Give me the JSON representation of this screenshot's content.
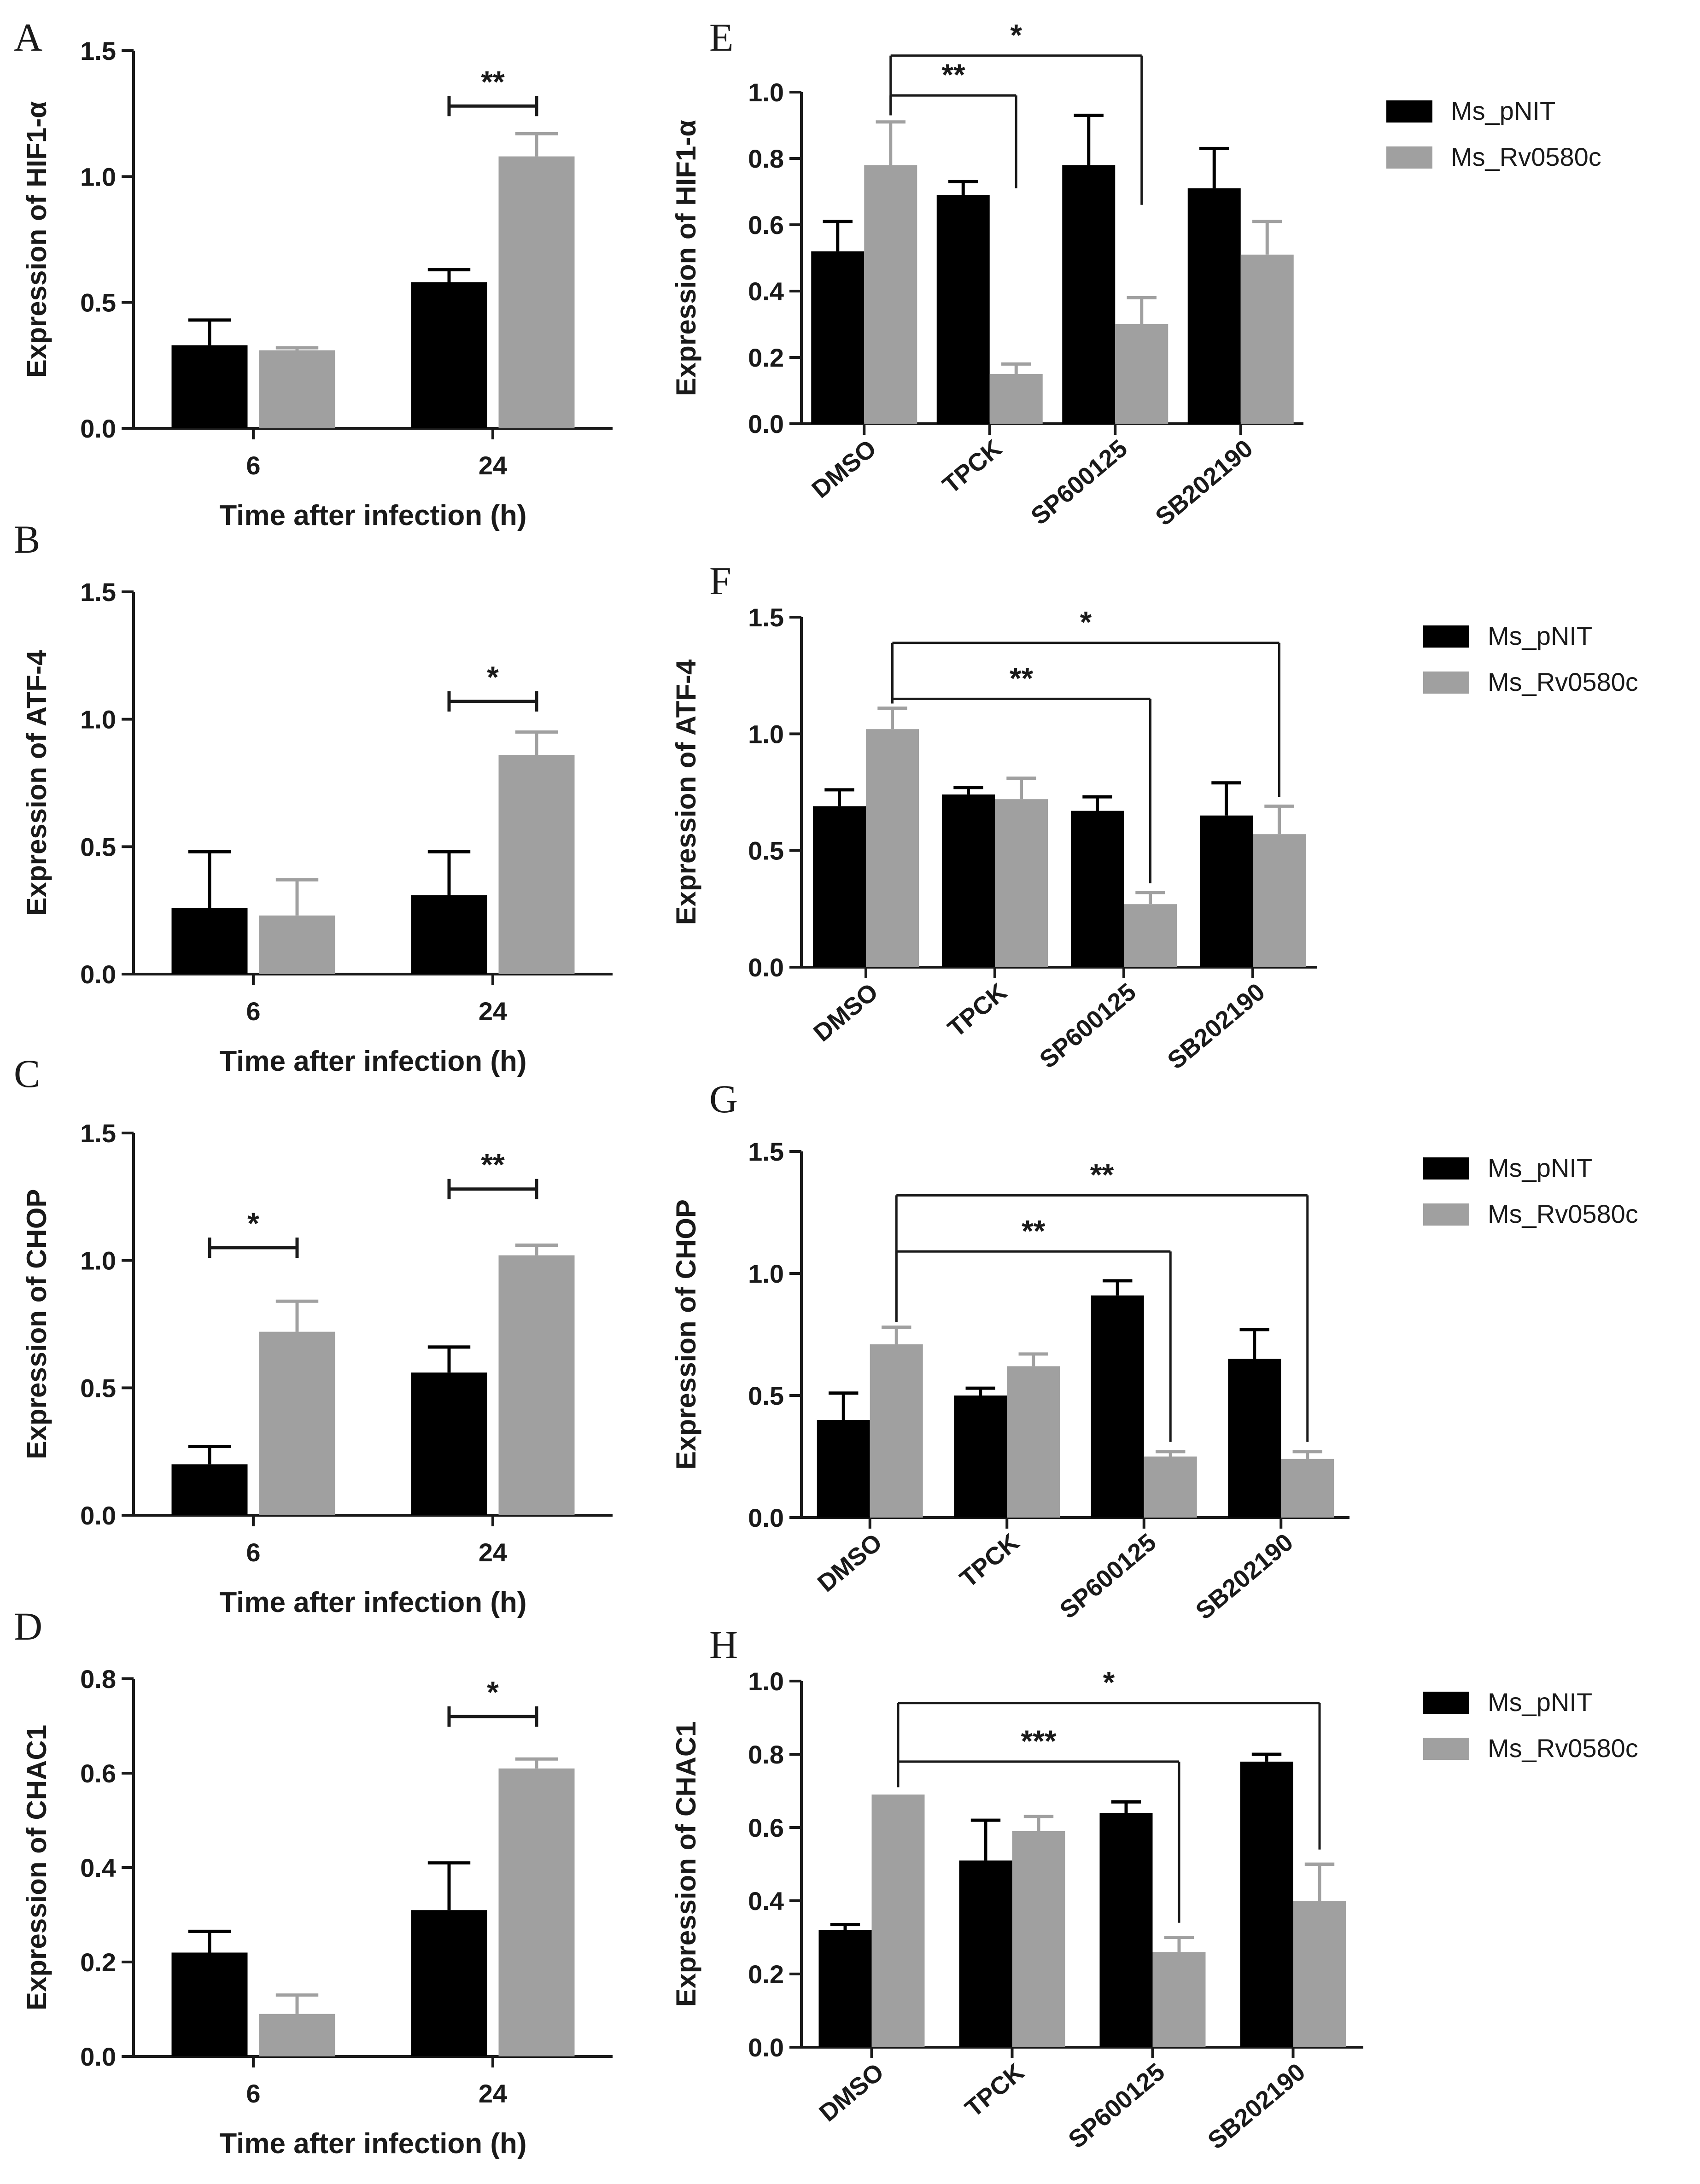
{
  "colors": {
    "pnit": "#000000",
    "rv": "#a0a0a0",
    "axis": "#1a1a1a"
  },
  "chart_data": [
    {
      "panel": "A",
      "type": "bar",
      "layout": "time",
      "categories": [
        "6",
        "24"
      ],
      "series": [
        {
          "name": "",
          "values": [
            0.33,
            0.58
          ],
          "errors": [
            0.1,
            0.05
          ]
        },
        {
          "name": "",
          "values": [
            0.31,
            1.08
          ],
          "errors": [
            0.01,
            0.09
          ]
        }
      ],
      "ylabel": "Expression of HIF1-α",
      "xlabel": "Time after infection (h)",
      "ylim": [
        0,
        1.5
      ],
      "yticks": [
        "0.0",
        "0.5",
        "1.0",
        "1.5"
      ],
      "significance": [
        {
          "category": 1,
          "label": "**",
          "at": 1.28
        }
      ]
    },
    {
      "panel": "B",
      "type": "bar",
      "layout": "time",
      "categories": [
        "6",
        "24"
      ],
      "series": [
        {
          "name": "",
          "values": [
            0.26,
            0.31
          ],
          "errors": [
            0.22,
            0.17
          ]
        },
        {
          "name": "",
          "values": [
            0.23,
            0.86
          ],
          "errors": [
            0.14,
            0.09
          ]
        }
      ],
      "ylabel": "Expression of ATF-4",
      "xlabel": "Time after infection (h)",
      "ylim": [
        0,
        1.5
      ],
      "yticks": [
        "0.0",
        "0.5",
        "1.0",
        "1.5"
      ],
      "significance": [
        {
          "category": 1,
          "label": "*",
          "at": 1.07
        }
      ]
    },
    {
      "panel": "C",
      "type": "bar",
      "layout": "time",
      "categories": [
        "6",
        "24"
      ],
      "series": [
        {
          "name": "",
          "values": [
            0.2,
            0.56
          ],
          "errors": [
            0.07,
            0.1
          ]
        },
        {
          "name": "",
          "values": [
            0.72,
            1.02
          ],
          "errors": [
            0.12,
            0.04
          ]
        }
      ],
      "ylabel": "Expression of CHOP",
      "xlabel": "Time after infection (h)",
      "ylim": [
        0,
        1.5
      ],
      "yticks": [
        "0.0",
        "0.5",
        "1.0",
        "1.5"
      ],
      "significance": [
        {
          "category": 0,
          "label": "*",
          "at": 1.05
        },
        {
          "category": 1,
          "label": "**",
          "at": 1.28
        }
      ]
    },
    {
      "panel": "D",
      "type": "bar",
      "layout": "time",
      "categories": [
        "6",
        "24"
      ],
      "series": [
        {
          "name": "",
          "values": [
            0.22,
            0.31
          ],
          "errors": [
            0.045,
            0.1
          ]
        },
        {
          "name": "",
          "values": [
            0.09,
            0.61
          ],
          "errors": [
            0.04,
            0.02
          ]
        }
      ],
      "ylabel": "Expression of CHAC1",
      "xlabel": "Time after infection (h)",
      "ylim": [
        0,
        0.8
      ],
      "yticks": [
        "0.0",
        "0.2",
        "0.4",
        "0.6",
        "0.8"
      ],
      "significance": [
        {
          "category": 1,
          "label": "*",
          "at": 0.72
        }
      ]
    },
    {
      "panel": "E",
      "type": "bar",
      "layout": "inhibitor",
      "categories": [
        "DMSO",
        "TPCK",
        "SP600125",
        "SB202190"
      ],
      "series": [
        {
          "name": "Ms_pNIT",
          "values": [
            0.52,
            0.69,
            0.78,
            0.71
          ],
          "errors": [
            0.09,
            0.04,
            0.15,
            0.12
          ]
        },
        {
          "name": "Ms_Rv0580c",
          "values": [
            0.78,
            0.15,
            0.3,
            0.51
          ],
          "errors": [
            0.13,
            0.03,
            0.08,
            0.1
          ]
        }
      ],
      "ylabel": "Expression of HIF1-α",
      "ylim": [
        0,
        1.0
      ],
      "yticks": [
        "0.0",
        "0.2",
        "0.4",
        "0.6",
        "0.8",
        "1.0"
      ],
      "legend": "right",
      "significance": [
        {
          "from": 0,
          "to": 1,
          "label": "**",
          "at": 0.99,
          "drop": 0.28
        },
        {
          "from": 0,
          "to": 2,
          "label": "*",
          "at": 1.11,
          "drop": 0.45
        }
      ]
    },
    {
      "panel": "F",
      "type": "bar",
      "layout": "inhibitor",
      "categories": [
        "DMSO",
        "TPCK",
        "SP600125",
        "SB202190"
      ],
      "series": [
        {
          "name": "Ms_pNIT",
          "values": [
            0.69,
            0.74,
            0.67,
            0.65
          ],
          "errors": [
            0.07,
            0.03,
            0.06,
            0.14
          ]
        },
        {
          "name": "Ms_Rv0580c",
          "values": [
            1.02,
            0.72,
            0.27,
            0.57
          ],
          "errors": [
            0.09,
            0.09,
            0.05,
            0.12
          ]
        }
      ],
      "ylabel": "Expression of ATF-4",
      "ylim": [
        0,
        1.5
      ],
      "yticks": [
        "0.0",
        "0.5",
        "1.0",
        "1.5"
      ],
      "legend": "right",
      "significance": [
        {
          "from": 0,
          "to": 2,
          "label": "**",
          "at": 1.15,
          "drop": 0.82
        },
        {
          "from": 0,
          "to": 3,
          "label": "*",
          "at": 1.39,
          "drop": 0.67
        }
      ]
    },
    {
      "panel": "G",
      "type": "bar",
      "layout": "inhibitor",
      "categories": [
        "DMSO",
        "TPCK",
        "SP600125",
        "SB202190"
      ],
      "series": [
        {
          "name": "Ms_pNIT",
          "values": [
            0.4,
            0.5,
            0.91,
            0.65
          ],
          "errors": [
            0.11,
            0.03,
            0.06,
            0.12
          ]
        },
        {
          "name": "Ms_Rv0580c",
          "values": [
            0.71,
            0.62,
            0.25,
            0.24
          ],
          "errors": [
            0.07,
            0.05,
            0.02,
            0.03
          ]
        }
      ],
      "ylabel": "Expression of CHOP",
      "ylim": [
        0,
        1.5
      ],
      "yticks": [
        "0.0",
        "0.5",
        "1.0",
        "1.5"
      ],
      "legend": "right",
      "significance": [
        {
          "from": 0,
          "to": 2,
          "label": "**",
          "at": 1.09,
          "drop": 0.8
        },
        {
          "from": 0,
          "to": 3,
          "label": "**",
          "at": 1.32,
          "drop": 1.04
        }
      ]
    },
    {
      "panel": "H",
      "type": "bar",
      "layout": "inhibitor",
      "categories": [
        "DMSO",
        "TPCK",
        "SP600125",
        "SB202190"
      ],
      "series": [
        {
          "name": "Ms_pNIT",
          "values": [
            0.32,
            0.51,
            0.64,
            0.78
          ],
          "errors": [
            0.015,
            0.11,
            0.03,
            0.02
          ]
        },
        {
          "name": "Ms_Rv0580c",
          "values": [
            0.69,
            0.59,
            0.26,
            0.4
          ],
          "errors": [
            0.0,
            0.04,
            0.04,
            0.1
          ]
        }
      ],
      "ylabel": "Expression of CHAC1",
      "ylim": [
        0,
        1.0
      ],
      "yticks": [
        "0.0",
        "0.2",
        "0.4",
        "0.6",
        "0.8",
        "1.0"
      ],
      "legend": "right",
      "significance": [
        {
          "from": 0,
          "to": 2,
          "label": "***",
          "at": 0.78,
          "drop": 0.46
        },
        {
          "from": 0,
          "to": 3,
          "label": "*",
          "at": 0.94,
          "drop": 0.48
        }
      ]
    }
  ]
}
